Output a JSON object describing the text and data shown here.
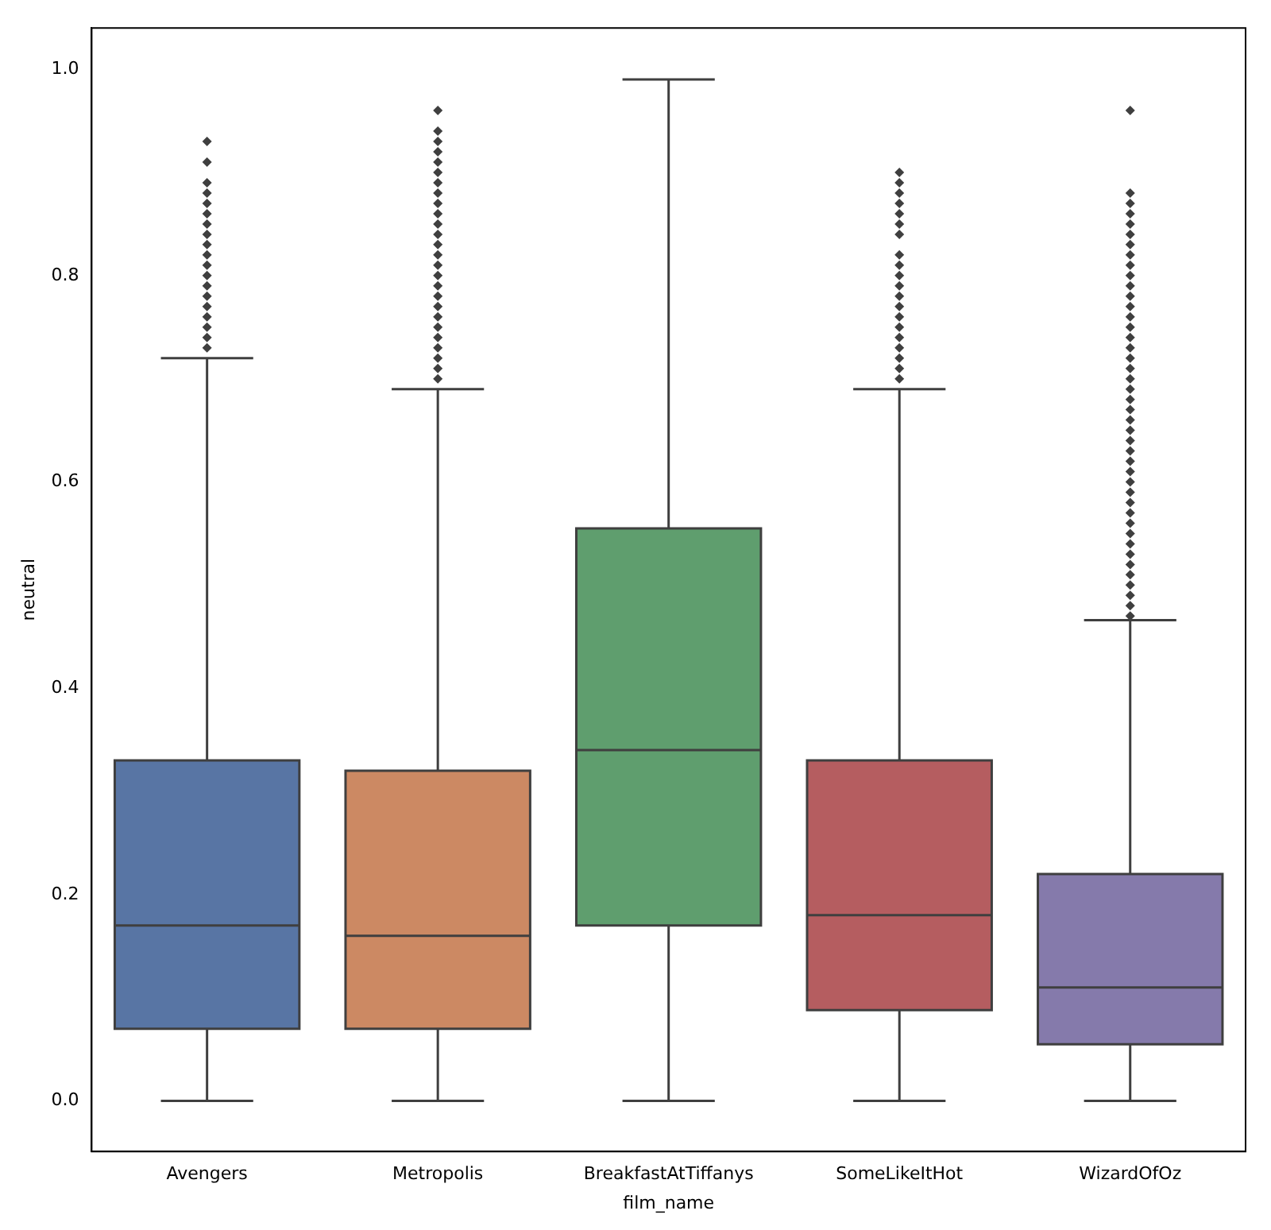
{
  "chart_data": {
    "type": "box",
    "xlabel": "film_name",
    "ylabel": "neutral",
    "categories": [
      "Avengers",
      "Metropolis",
      "BreakfastAtTiffanys",
      "SomeLikeItHot",
      "WizardOfOz"
    ],
    "colors": [
      "#5875a4",
      "#cc8963",
      "#5f9e6e",
      "#b55d60",
      "#857aab"
    ],
    "boxes": [
      {
        "low": 0,
        "q1": 0.07,
        "median": 0.17,
        "q3": 0.33,
        "high": 0.72,
        "outliers": [
          0.73,
          0.74,
          0.75,
          0.76,
          0.77,
          0.78,
          0.79,
          0.8,
          0.81,
          0.82,
          0.83,
          0.84,
          0.85,
          0.86,
          0.87,
          0.88,
          0.89,
          0.91,
          0.93
        ]
      },
      {
        "low": 0,
        "q1": 0.07,
        "median": 0.16,
        "q3": 0.32,
        "high": 0.69,
        "outliers": [
          0.7,
          0.71,
          0.72,
          0.73,
          0.74,
          0.75,
          0.76,
          0.77,
          0.78,
          0.79,
          0.8,
          0.81,
          0.82,
          0.83,
          0.84,
          0.85,
          0.86,
          0.87,
          0.88,
          0.89,
          0.9,
          0.91,
          0.92,
          0.93,
          0.94,
          0.96
        ]
      },
      {
        "low": 0,
        "q1": 0.17,
        "median": 0.34,
        "q3": 0.555,
        "high": 0.99
      },
      {
        "low": 0,
        "q1": 0.088,
        "median": 0.18,
        "q3": 0.33,
        "high": 0.69,
        "outliers": [
          0.7,
          0.71,
          0.72,
          0.73,
          0.74,
          0.75,
          0.76,
          0.77,
          0.78,
          0.79,
          0.8,
          0.81,
          0.82,
          0.84,
          0.85,
          0.86,
          0.87,
          0.88,
          0.89,
          0.9
        ]
      },
      {
        "low": 0,
        "q1": 0.055,
        "median": 0.11,
        "q3": 0.22,
        "high": 0.466,
        "outliers": [
          0.47,
          0.48,
          0.49,
          0.5,
          0.51,
          0.52,
          0.53,
          0.54,
          0.55,
          0.56,
          0.57,
          0.58,
          0.59,
          0.6,
          0.61,
          0.62,
          0.63,
          0.64,
          0.65,
          0.66,
          0.67,
          0.68,
          0.69,
          0.7,
          0.71,
          0.72,
          0.73,
          0.74,
          0.75,
          0.76,
          0.77,
          0.78,
          0.79,
          0.8,
          0.81,
          0.82,
          0.83,
          0.84,
          0.85,
          0.86,
          0.87,
          0.88,
          0.96
        ]
      }
    ],
    "ylim": [
      -0.049,
      1.04
    ],
    "yticks": [
      {
        "value": 0,
        "label": "0.0"
      },
      {
        "value": 0.2,
        "label": "0.2"
      },
      {
        "value": 0.4,
        "label": "0.4"
      },
      {
        "value": 0.6,
        "label": "0.6"
      },
      {
        "value": 0.8,
        "label": "0.8"
      },
      {
        "value": 1,
        "label": "1.0"
      }
    ],
    "grid": false,
    "legend": false
  }
}
